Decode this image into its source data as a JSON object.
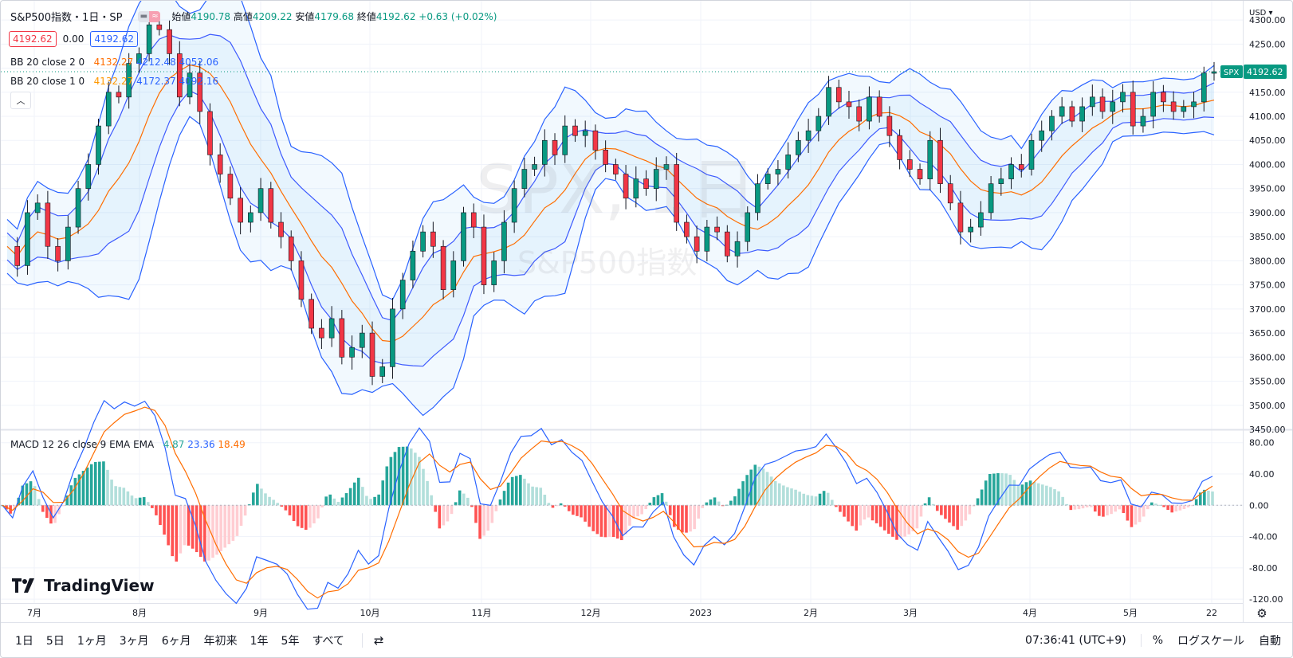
{
  "header": {
    "symbol_title": "S&P500指数・1日・SP",
    "ohlc": {
      "open_label": "始値",
      "open": "4190.78",
      "high_label": "高値",
      "high": "4209.22",
      "low_label": "安値",
      "low": "4179.68",
      "close_label": "終値",
      "close": "4192.62",
      "change": "+0.63 (+0.02%)"
    },
    "bid": "4192.62",
    "spread": "0.00",
    "ask": "4192.62"
  },
  "indicators": {
    "bb2": {
      "label": "BB 20 close 2 0",
      "basis": "4132.27",
      "upper": "4212.48",
      "lower": "4052.06"
    },
    "bb1": {
      "label": "BB 20 close 1 0",
      "basis": "4132.27",
      "upper": "4172.37",
      "lower": "4092.16"
    },
    "macd": {
      "label": "MACD 12 26 close 9 EMA EMA",
      "hist": "4.87",
      "macd": "23.36",
      "signal": "18.49"
    }
  },
  "watermark": {
    "line1": "SPX, 1日",
    "line2": "S&P500指数"
  },
  "price_scale": {
    "currency": "USD",
    "ticks": [
      "4300.00",
      "4250.00",
      "4200.00",
      "4150.00",
      "4100.00",
      "4050.00",
      "4000.00",
      "3950.00",
      "3900.00",
      "3850.00",
      "3800.00",
      "3750.00",
      "3700.00",
      "3650.00",
      "3600.00",
      "3550.00",
      "3500.00",
      "3450.00"
    ],
    "symbol_tag": "SPX",
    "last_price": "4192.62"
  },
  "macd_scale": {
    "ticks": [
      "80.00",
      "40.00",
      "0.00",
      "-40.00",
      "-80.00",
      "-120.00"
    ]
  },
  "time_axis": {
    "labels": [
      "7月",
      "8月",
      "9月",
      "10月",
      "11月",
      "12月",
      "2023",
      "2月",
      "3月",
      "4月",
      "5月",
      "22"
    ]
  },
  "bottom_bar": {
    "ranges": [
      "1日",
      "5日",
      "1ヶ月",
      "3ヶ月",
      "6ヶ月",
      "年初来",
      "1年",
      "5年",
      "すべて"
    ],
    "clock": "07:36:41 (UTC+9)",
    "percent": "%",
    "log_scale": "ログスケール",
    "auto": "自動"
  },
  "brand": {
    "name": "TradingView"
  },
  "colors": {
    "up": "#089981",
    "down": "#f23645",
    "bb_band": "#2962ff",
    "bb_basis": "#ff6d00",
    "macd_line": "#2962ff",
    "signal_line": "#ff6d00",
    "hist_up_strong": "#26a69a",
    "hist_up_weak": "#b2dfdb",
    "hist_down_strong": "#ff5252",
    "hist_down_weak": "#ffcdd2"
  },
  "chart_data": [
    {
      "type": "candlestick",
      "title": "S&P500指数・1日・SP",
      "ylim": [
        3450,
        4320
      ],
      "x": [
        "2022-07",
        "2022-08",
        "2022-09",
        "2022-10",
        "2022-11",
        "2022-12",
        "2023-01",
        "2023-02",
        "2023-03",
        "2023-04",
        "2023-05",
        "2023-05-22"
      ],
      "close_path": [
        3830,
        3790,
        3900,
        3920,
        3830,
        3800,
        3870,
        3950,
        4000,
        4080,
        4150,
        4140,
        4210,
        4230,
        4290,
        4280,
        4230,
        4140,
        4190,
        4110,
        4020,
        3980,
        3930,
        3880,
        3900,
        3950,
        3880,
        3850,
        3800,
        3720,
        3660,
        3640,
        3680,
        3600,
        3620,
        3650,
        3560,
        3580,
        3700,
        3760,
        3820,
        3860,
        3830,
        3740,
        3800,
        3900,
        3870,
        3750,
        3800,
        3880,
        3950,
        3990,
        4000,
        4050,
        4020,
        4080,
        4060,
        4070,
        4030,
        4000,
        3980,
        3930,
        3970,
        3950,
        3990,
        4000,
        3880,
        3850,
        3820,
        3870,
        3860,
        3810,
        3840,
        3900,
        3960,
        3980,
        3990,
        4020,
        4050,
        4070,
        4100,
        4160,
        4130,
        4120,
        4090,
        4140,
        4100,
        4060,
        4010,
        3990,
        3970,
        4050,
        3960,
        3920,
        3860,
        3870,
        3900,
        3960,
        3970,
        4000,
        3990,
        4050,
        4070,
        4100,
        4120,
        4090,
        4120,
        4140,
        4110,
        4130,
        4150,
        4080,
        4100,
        4150,
        4130,
        4110,
        4120,
        4130,
        4190,
        4192.62
      ],
      "last": 4192.62
    },
    {
      "type": "bar",
      "title": "MACD 12 26 close 9 EMA EMA",
      "ylim": [
        -125,
        95
      ],
      "latest": {
        "histogram": 4.87,
        "macd": 23.36,
        "signal": 18.49
      }
    }
  ]
}
